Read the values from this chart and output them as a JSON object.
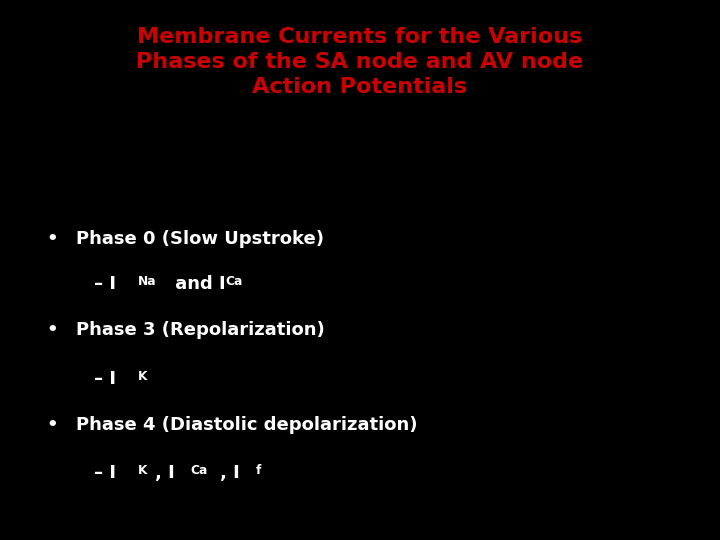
{
  "background_color": "#000000",
  "title_line1": "Membrane Currents for the Various",
  "title_line2": "Phases of the SA node and AV node",
  "title_line3": "Action Potentials",
  "title_color": "#cc0000",
  "title_fontsize": 16,
  "bullet_color": "#ffffff",
  "bullet_fontsize": 13,
  "sub_fontsize": 13,
  "fig_width": 7.2,
  "fig_height": 5.4,
  "dpi": 100
}
